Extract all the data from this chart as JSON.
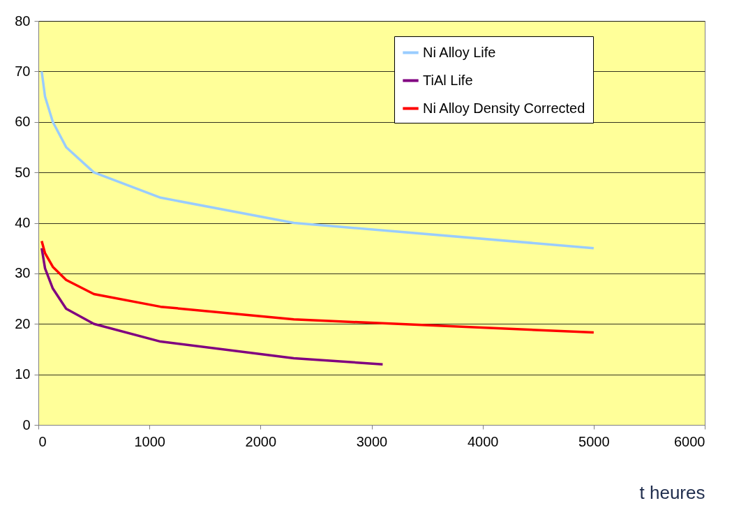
{
  "chart_data": {
    "type": "line",
    "xlabel": "t heures",
    "x": [
      30,
      60,
      130,
      250,
      500,
      1100,
      2300,
      5000
    ],
    "series": [
      {
        "name": "Ni Alloy Life",
        "color": "#99ccff",
        "values": [
          70,
          65,
          60,
          55,
          50,
          45,
          40,
          35
        ]
      },
      {
        "name": "TiAl Life",
        "color": "#800080",
        "x": [
          30,
          60,
          130,
          250,
          500,
          1100,
          2300,
          3100
        ],
        "values": [
          35,
          31,
          27,
          23,
          20,
          16.5,
          13.2,
          12
        ]
      },
      {
        "name": "Ni Alloy Density Corrected",
        "color": "#ff0000",
        "values": [
          36.4,
          34,
          31.3,
          28.7,
          25.9,
          23.4,
          20.9,
          18.3
        ]
      }
    ],
    "xlim": [
      0,
      6000
    ],
    "xticks": [
      0,
      1000,
      2000,
      3000,
      4000,
      5000,
      6000
    ],
    "ylim": [
      0,
      80
    ],
    "yticks": [
      0,
      10,
      20,
      30,
      40,
      50,
      60,
      70,
      80
    ],
    "grid": "y",
    "legend": "top right",
    "marker": "none",
    "line_style": "solid"
  }
}
